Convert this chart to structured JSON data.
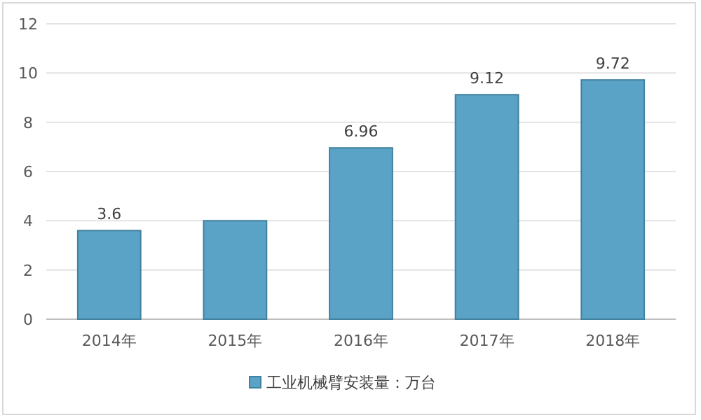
{
  "chart_data": {
    "type": "bar",
    "categories": [
      "2014年",
      "2015年",
      "2016年",
      "2017年",
      "2018年"
    ],
    "series": [
      {
        "name": "工业机械臂安装量：万台",
        "color": "#5ba3c6",
        "values": [
          3.6,
          4.0,
          6.96,
          9.12,
          9.72
        ],
        "value_labels": [
          "3.6",
          null,
          "6.96",
          "9.12",
          "9.72"
        ]
      }
    ],
    "ylim": [
      0,
      12
    ],
    "yticks": [
      0,
      2,
      4,
      6,
      8,
      10,
      12
    ],
    "grid": "y",
    "legend": "bottom"
  }
}
